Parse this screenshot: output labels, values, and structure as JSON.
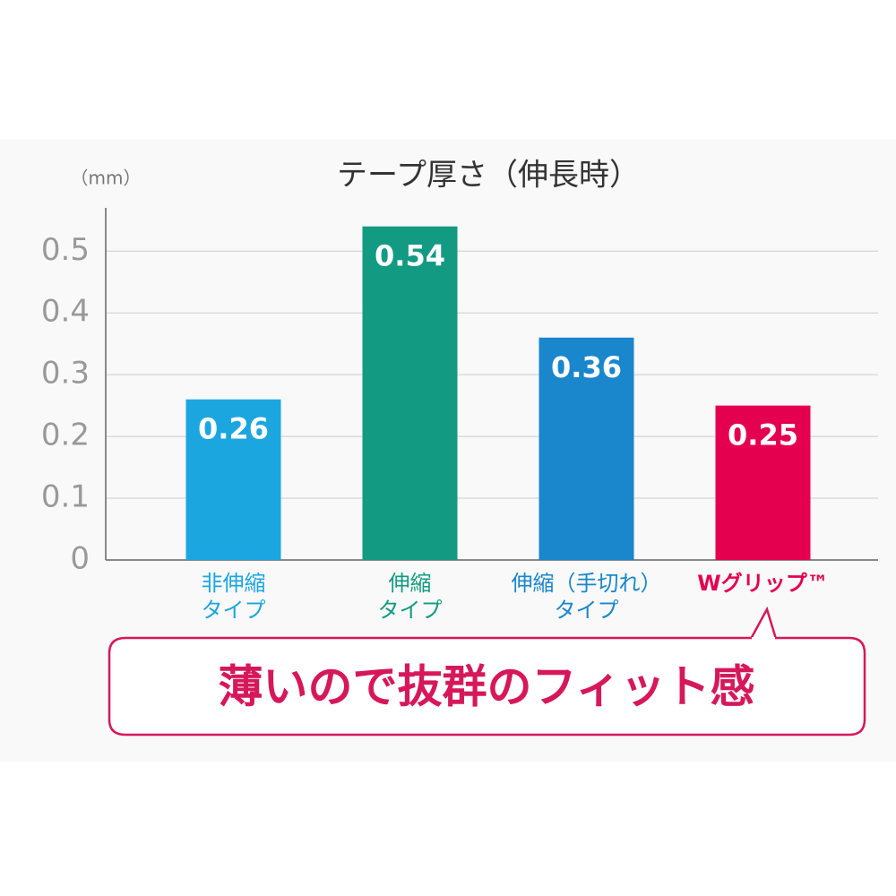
{
  "chart_data": {
    "type": "bar",
    "title": "テープ厚さ（伸長時）",
    "y_unit": "（mm）",
    "categories": [
      [
        "非伸縮",
        "タイプ"
      ],
      [
        "伸縮",
        "タイプ"
      ],
      [
        "伸縮（手切れ）",
        "タイプ"
      ],
      [
        "Wグリップ™"
      ]
    ],
    "values": [
      0.26,
      0.54,
      0.36,
      0.25
    ],
    "colors": [
      "#1ba6e0",
      "#139a82",
      "#1a86cc",
      "#e4004f"
    ],
    "ylim": [
      0,
      0.57
    ],
    "yticks": [
      0,
      0.1,
      0.2,
      0.3,
      0.4,
      0.5
    ],
    "grid": true,
    "callout": "薄いので抜群のフィット感"
  }
}
